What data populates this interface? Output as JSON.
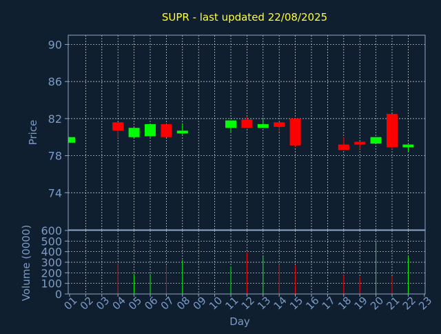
{
  "chart_data": {
    "type": "candlestick",
    "title": "SUPR - last updated 22/08/2025",
    "colors": {
      "background": "#0f1f30",
      "plot_border": "#8fa8c8",
      "grid": "#dcdcdc",
      "title": "#ffff33",
      "axis_text": "#7b9cc6",
      "up": "#00ff00",
      "down": "#ff0000"
    },
    "grid": true,
    "x": {
      "label": "Day",
      "ticks": [
        "01",
        "02",
        "03",
        "04",
        "05",
        "06",
        "07",
        "08",
        "09",
        "10",
        "11",
        "12",
        "13",
        "14",
        "15",
        "16",
        "17",
        "18",
        "19",
        "20",
        "21",
        "22",
        "23"
      ],
      "range": [
        1,
        23
      ]
    },
    "price_panel": {
      "ylabel": "Price",
      "ylim": [
        70,
        91
      ],
      "yticks": [
        74,
        78,
        82,
        86,
        90
      ],
      "candles": [
        {
          "day": 1,
          "open": 79.4,
          "close": 80.0,
          "high": 80.0,
          "low": 79.4
        },
        {
          "day": 4,
          "open": 81.6,
          "close": 80.7,
          "high": 81.6,
          "low": 79.9
        },
        {
          "day": 5,
          "open": 80.0,
          "close": 81.0,
          "high": 81.0,
          "low": 79.9
        },
        {
          "day": 6,
          "open": 80.1,
          "close": 81.4,
          "high": 81.4,
          "low": 80.0
        },
        {
          "day": 7,
          "open": 81.4,
          "close": 80.0,
          "high": 81.4,
          "low": 80.0
        },
        {
          "day": 8,
          "open": 80.4,
          "close": 80.7,
          "high": 81.5,
          "low": 80.3
        },
        {
          "day": 11,
          "open": 81.0,
          "close": 81.8,
          "high": 81.8,
          "low": 80.5
        },
        {
          "day": 12,
          "open": 81.9,
          "close": 81.0,
          "high": 82.2,
          "low": 81.0
        },
        {
          "day": 13,
          "open": 81.0,
          "close": 81.4,
          "high": 82.1,
          "low": 81.0
        },
        {
          "day": 14,
          "open": 81.6,
          "close": 81.1,
          "high": 81.6,
          "low": 80.6
        },
        {
          "day": 15,
          "open": 82.0,
          "close": 79.1,
          "high": 82.0,
          "low": 78.9
        },
        {
          "day": 18,
          "open": 79.2,
          "close": 78.6,
          "high": 80.0,
          "low": 78.6
        },
        {
          "day": 19,
          "open": 79.5,
          "close": 79.2,
          "high": 79.5,
          "low": 78.7
        },
        {
          "day": 20,
          "open": 79.3,
          "close": 80.0,
          "high": 80.0,
          "low": 79.3
        },
        {
          "day": 21,
          "open": 82.5,
          "close": 78.9,
          "high": 82.5,
          "low": 78.7
        },
        {
          "day": 22,
          "open": 78.9,
          "close": 79.2,
          "high": 79.2,
          "low": 78.4
        }
      ]
    },
    "volume_panel": {
      "ylabel": "Volume (0000)",
      "ylim": [
        0,
        600
      ],
      "yticks": [
        0,
        100,
        200,
        300,
        400,
        500,
        600
      ],
      "bars": [
        {
          "day": 4,
          "value": 290,
          "direction": "down"
        },
        {
          "day": 5,
          "value": 190,
          "direction": "up"
        },
        {
          "day": 6,
          "value": 190,
          "direction": "up"
        },
        {
          "day": 7,
          "value": 270,
          "direction": "down"
        },
        {
          "day": 8,
          "value": 320,
          "direction": "up"
        },
        {
          "day": 11,
          "value": 260,
          "direction": "up"
        },
        {
          "day": 12,
          "value": 390,
          "direction": "down"
        },
        {
          "day": 13,
          "value": 360,
          "direction": "up"
        },
        {
          "day": 14,
          "value": 280,
          "direction": "down"
        },
        {
          "day": 15,
          "value": 270,
          "direction": "down"
        },
        {
          "day": 18,
          "value": 180,
          "direction": "down"
        },
        {
          "day": 19,
          "value": 160,
          "direction": "down"
        },
        {
          "day": 20,
          "value": 500,
          "direction": "up"
        },
        {
          "day": 21,
          "value": 170,
          "direction": "down"
        },
        {
          "day": 22,
          "value": 360,
          "direction": "up"
        }
      ]
    }
  }
}
